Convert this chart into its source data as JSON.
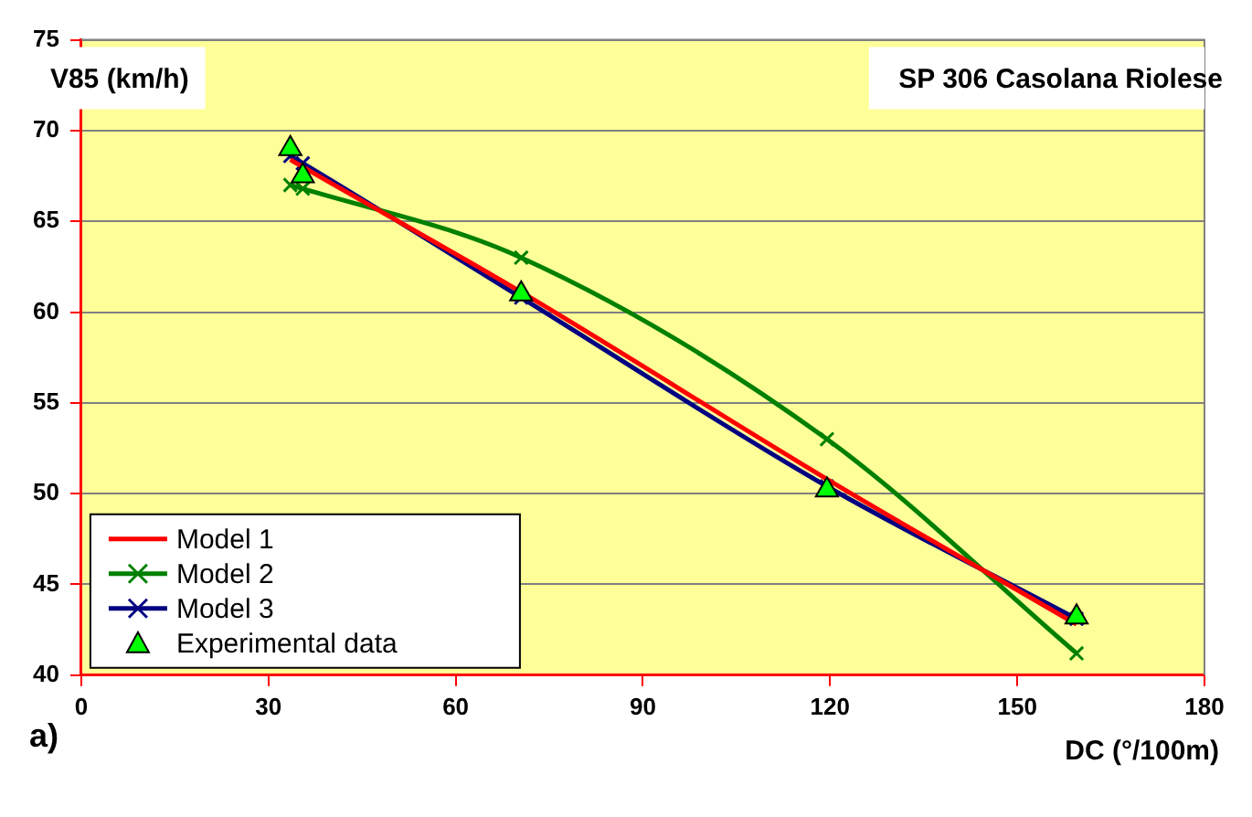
{
  "chart_data": {
    "type": "line",
    "title": "SP 306 Casolana Riolese",
    "xlabel": "DC (°/100m)",
    "ylabel": "V85 (km/h)",
    "x": [
      33.5,
      35.5,
      70.5,
      119.5,
      159.5
    ],
    "series": [
      {
        "name": "Model 1",
        "type": "line",
        "color": "#ff0000",
        "marker": "none",
        "values": [
          68.4,
          68.0,
          61.1,
          50.8,
          42.8
        ]
      },
      {
        "name": "Model 2",
        "type": "line",
        "color": "#008000",
        "marker": "cross",
        "values": [
          67.0,
          66.8,
          63.0,
          53.0,
          41.2
        ]
      },
      {
        "name": "Model 3",
        "type": "line",
        "color": "#000080",
        "marker": "cross",
        "values": [
          68.6,
          68.2,
          60.8,
          50.4,
          43.1
        ]
      },
      {
        "name": "Experimental data",
        "type": "scatter",
        "color": "#00ff00",
        "marker": "triangle",
        "values": [
          69.0,
          67.5,
          61.0,
          50.2,
          43.2
        ]
      }
    ],
    "xlim": [
      0,
      180
    ],
    "xticks": [
      0,
      30,
      60,
      90,
      120,
      150,
      180
    ],
    "ylim": [
      40,
      75
    ],
    "yticks": [
      40,
      45,
      50,
      55,
      60,
      65,
      70,
      75
    ],
    "grid": "y",
    "legend": "bottom left",
    "annotations": [
      "a)"
    ]
  }
}
